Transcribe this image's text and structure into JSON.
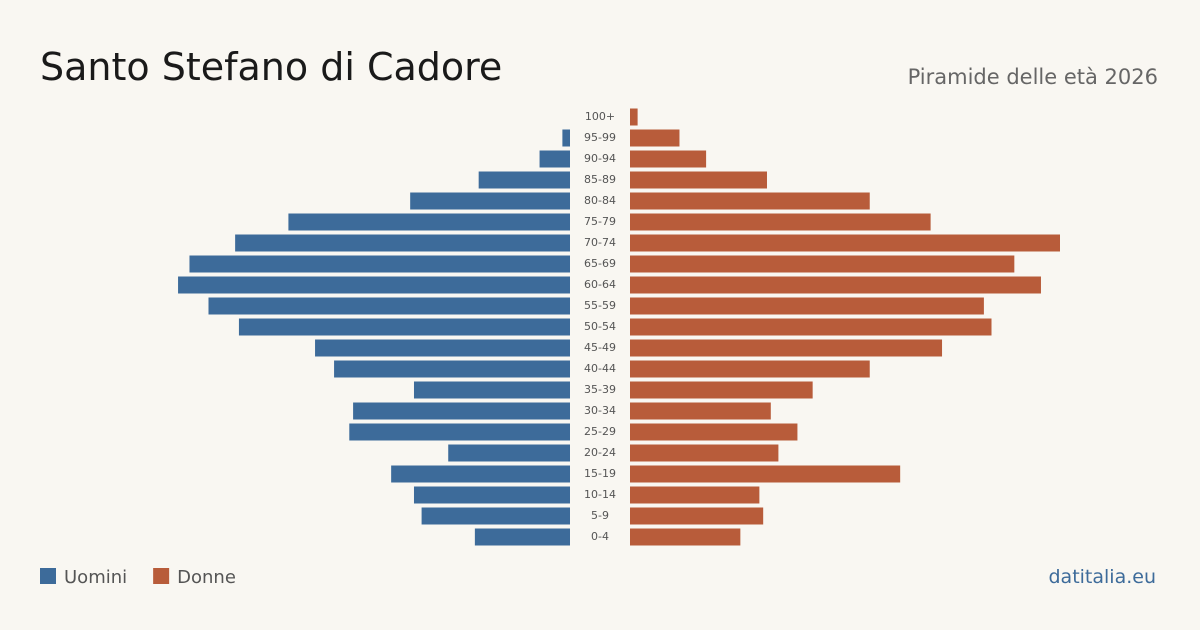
{
  "chart_data": {
    "type": "pyramid",
    "title": "Santo Stefano di Cadore",
    "subtitle": "Piramide delle età 2026",
    "source": "datitalia.eu",
    "categories": [
      "100+",
      "95-99",
      "90-94",
      "85-89",
      "80-84",
      "75-79",
      "70-74",
      "65-69",
      "60-64",
      "55-59",
      "50-54",
      "45-49",
      "40-44",
      "35-39",
      "30-34",
      "25-29",
      "20-24",
      "15-19",
      "10-14",
      "5-9",
      "0-4"
    ],
    "series": [
      {
        "name": "Uomini",
        "color": "#3d6b9a",
        "values": [
          0,
          2,
          8,
          24,
          42,
          74,
          88,
          100,
          103,
          95,
          87,
          67,
          62,
          41,
          57,
          58,
          32,
          47,
          41,
          39,
          25
        ]
      },
      {
        "name": "Donne",
        "color": "#b85c3a",
        "values": [
          2,
          13,
          20,
          36,
          63,
          79,
          113,
          101,
          108,
          93,
          95,
          82,
          63,
          48,
          37,
          44,
          39,
          71,
          34,
          35,
          29
        ]
      }
    ]
  }
}
